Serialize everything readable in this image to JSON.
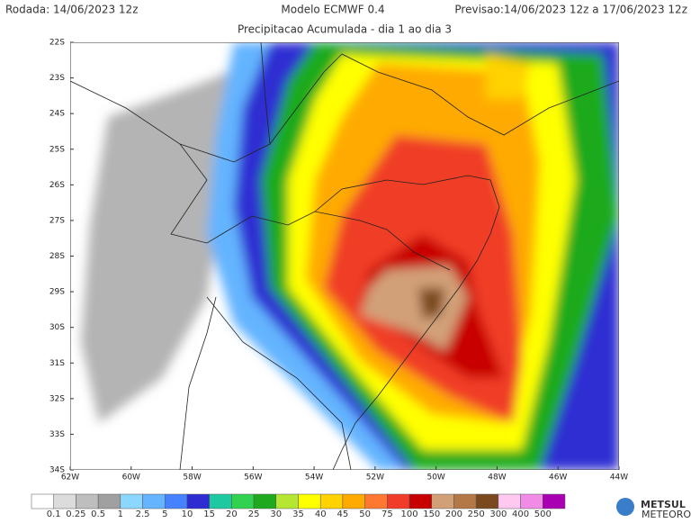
{
  "header": {
    "run": "Rodada: 14/06/2023 12z",
    "model": "Modelo ECMWF 0.4",
    "forecast": "Previsao:14/06/2023 12z a 17/06/2023 12z",
    "subtitle": "Precipitacao Acumulada - dia 1 ao dia 3"
  },
  "map": {
    "lat_labels": [
      "22S",
      "23S",
      "24S",
      "25S",
      "26S",
      "27S",
      "28S",
      "29S",
      "30S",
      "31S",
      "32S",
      "33S",
      "34S"
    ],
    "lon_labels": [
      "62W",
      "60W",
      "58W",
      "56W",
      "54W",
      "52W",
      "50W",
      "48W",
      "46W",
      "44W"
    ]
  },
  "legend": {
    "colors": [
      "#ffffff",
      "#dcdcdc",
      "#bebebe",
      "#a0a0a0",
      "#8cd7ff",
      "#64b4ff",
      "#4682ff",
      "#2d2dd2",
      "#1ec8a0",
      "#32d250",
      "#1eaa1e",
      "#b4e632",
      "#ffff00",
      "#ffd200",
      "#ffaa00",
      "#ff7832",
      "#f03c28",
      "#c80000",
      "#d2a078",
      "#b47846",
      "#7a4a1e",
      "#ffc8f0",
      "#f08ce6",
      "#aa00b4"
    ],
    "labels": [
      "0.1",
      "0.25",
      "0.5",
      "1",
      "2.5",
      "5",
      "10",
      "15",
      "20",
      "25",
      "30",
      "35",
      "40",
      "45",
      "50",
      "75",
      "100",
      "150",
      "200",
      "250",
      "300",
      "400",
      "500"
    ]
  },
  "logo": {
    "name": "METSUL",
    "tagline": "METEOROLOGIA"
  }
}
